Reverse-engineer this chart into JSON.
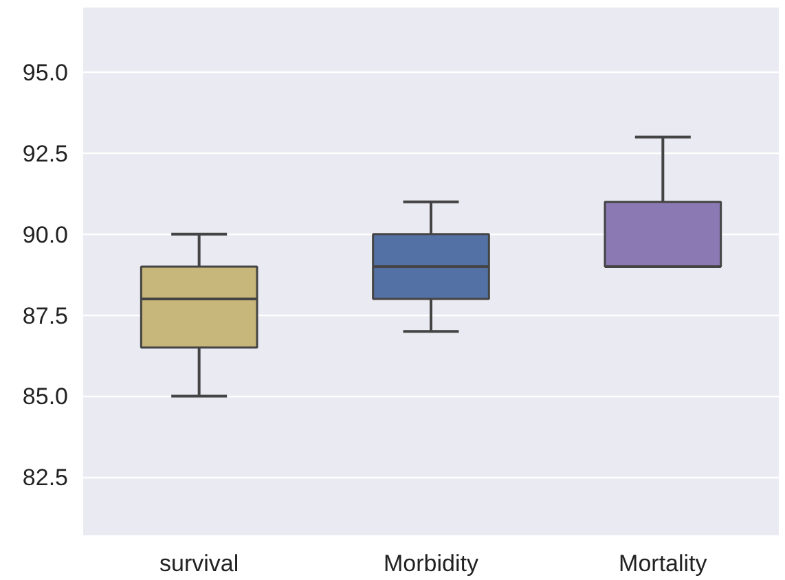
{
  "chart_data": {
    "type": "box",
    "categories": [
      "survival",
      "Morbidity",
      "Mortality"
    ],
    "boxes": [
      {
        "low": 85,
        "q1": 86.5,
        "median": 88,
        "q3": 89,
        "high": 90
      },
      {
        "low": 87,
        "q1": 88,
        "median": 89,
        "q3": 90,
        "high": 91
      },
      {
        "low": 89,
        "q1": 89,
        "median": 89,
        "q3": 91,
        "high": 93
      }
    ],
    "colors": [
      "#c8b77a",
      "#5471a5",
      "#8a79b3"
    ],
    "ylim": [
      80.7,
      97
    ],
    "yticks": [
      {
        "value": 82.5,
        "label": "82.5"
      },
      {
        "value": 85,
        "label": "85.0"
      },
      {
        "value": 87.5,
        "label": "87.5"
      },
      {
        "value": 90,
        "label": "90.0"
      },
      {
        "value": 92.5,
        "label": "92.5"
      },
      {
        "value": 95,
        "label": "95.0"
      }
    ],
    "grid": "y"
  }
}
